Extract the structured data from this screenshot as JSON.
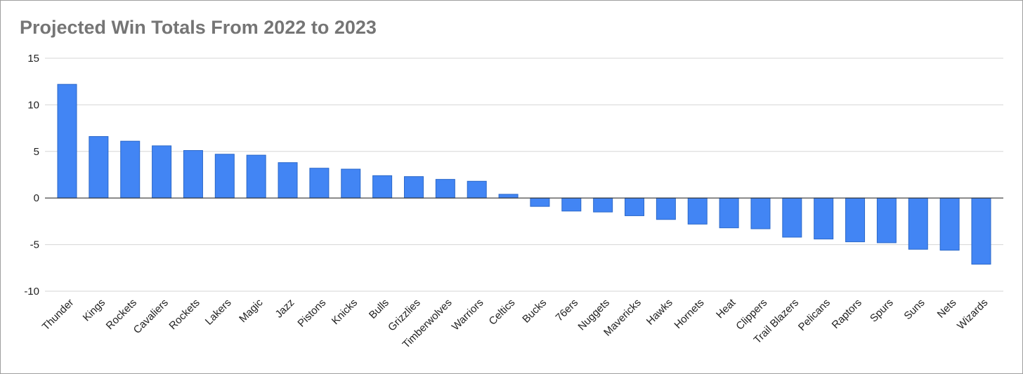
{
  "chart_data": {
    "type": "bar",
    "title": "Projected Win Totals From 2022 to 2023",
    "xlabel": "",
    "ylabel": "",
    "ylim": [
      -10,
      15
    ],
    "yticks": [
      15,
      10,
      5,
      0,
      -5,
      -10
    ],
    "grid": true,
    "legend": "none",
    "bar_color": "#4285f4",
    "bar_edge_color": "#2b68c9",
    "categories": [
      "Thunder",
      "Kings",
      "Rockets",
      "Cavaliers",
      "Rockets",
      "Lakers",
      "Magic",
      "Jazz",
      "Pistons",
      "Knicks",
      "Bulls",
      "Grizzlies",
      "Timberwolves",
      "Warriors",
      "Celtics",
      "Bucks",
      "76ers",
      "Nuggets",
      "Mavericks",
      "Hawks",
      "Hornets",
      "Heat",
      "Clippers",
      "Trail Blazers",
      "Pelicans",
      "Raptors",
      "Spurs",
      "Suns",
      "Nets",
      "Wizards"
    ],
    "values": [
      12.2,
      6.6,
      6.1,
      5.6,
      5.1,
      4.7,
      4.6,
      3.8,
      3.2,
      3.1,
      2.4,
      2.3,
      2.0,
      1.8,
      0.4,
      -0.9,
      -1.4,
      -1.5,
      -1.9,
      -2.3,
      -2.8,
      -3.2,
      -3.3,
      -4.2,
      -4.4,
      -4.7,
      -4.8,
      -5.5,
      -5.6,
      -7.1
    ]
  }
}
